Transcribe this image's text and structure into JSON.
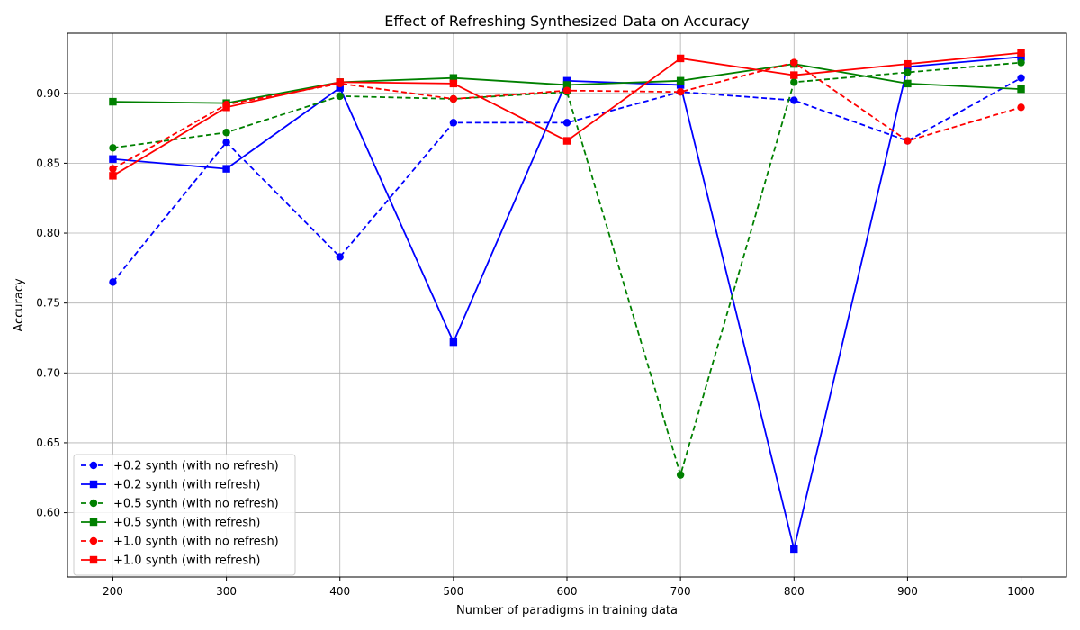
{
  "chart_data": {
    "type": "line",
    "title": "Effect of Refreshing Synthesized Data on Accuracy",
    "xlabel": "Number of paradigms in training data",
    "ylabel": "Accuracy",
    "x": [
      200,
      300,
      400,
      500,
      600,
      700,
      800,
      900,
      1000
    ],
    "xlim": [
      160,
      1040
    ],
    "ylim": [
      0.554,
      0.943
    ],
    "xticks": [
      200,
      300,
      400,
      500,
      600,
      700,
      800,
      900,
      1000
    ],
    "yticks": [
      0.6,
      0.65,
      0.7,
      0.75,
      0.8,
      0.85,
      0.9
    ],
    "grid": true,
    "legend_position": "lower-left",
    "series": [
      {
        "name": "+0.2 synth (with no refresh)",
        "color": "#0000ff",
        "dash": true,
        "marker": "circle",
        "values": [
          0.765,
          0.865,
          0.783,
          0.879,
          0.879,
          0.901,
          0.895,
          0.866,
          0.911
        ]
      },
      {
        "name": "+0.2 synth (with refresh)",
        "color": "#0000ff",
        "dash": false,
        "marker": "square",
        "values": [
          0.853,
          0.846,
          0.904,
          0.722,
          0.909,
          0.906,
          0.574,
          0.919,
          0.926
        ]
      },
      {
        "name": "+0.5 synth (with no refresh)",
        "color": "#008000",
        "dash": true,
        "marker": "circle",
        "values": [
          0.861,
          0.872,
          0.898,
          0.896,
          0.901,
          0.627,
          0.908,
          0.915,
          0.922
        ]
      },
      {
        "name": "+0.5 synth (with refresh)",
        "color": "#008000",
        "dash": false,
        "marker": "square",
        "values": [
          0.894,
          0.893,
          0.908,
          0.911,
          0.906,
          0.909,
          0.921,
          0.907,
          0.903
        ]
      },
      {
        "name": "+1.0 synth (with no refresh)",
        "color": "#ff0000",
        "dash": true,
        "marker": "circle",
        "values": [
          0.846,
          0.892,
          0.907,
          0.896,
          0.902,
          0.901,
          0.922,
          0.866,
          0.89
        ]
      },
      {
        "name": "+1.0 synth (with refresh)",
        "color": "#ff0000",
        "dash": false,
        "marker": "square",
        "values": [
          0.841,
          0.89,
          0.908,
          0.907,
          0.866,
          0.925,
          0.913,
          0.921,
          0.929
        ]
      }
    ]
  }
}
